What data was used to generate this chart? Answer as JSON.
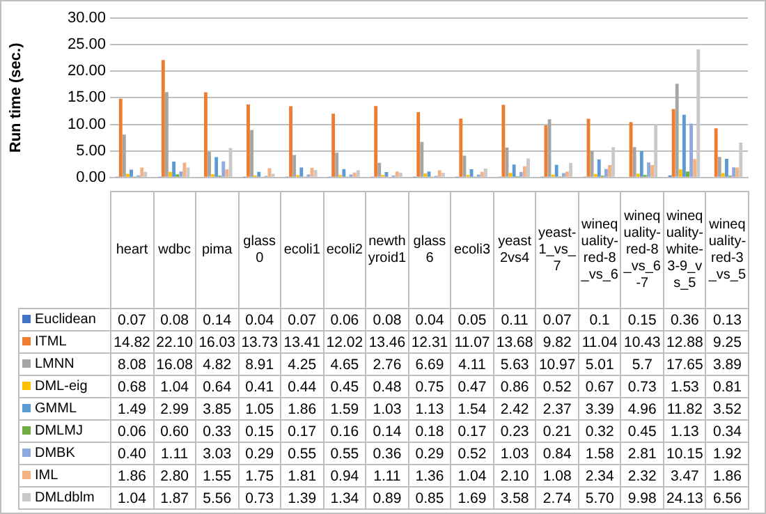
{
  "chart_data": {
    "type": "bar",
    "ylabel": "Run time (sec.)",
    "categories": [
      "heart",
      "wdbc",
      "pima",
      "glass0",
      "ecoli1",
      "ecoli2",
      "newthyroid1",
      "glass6",
      "ecoli3",
      "yeast2vs4",
      "yeast-1_vs_7",
      "winequality-red-8_vs_6",
      "winequality-red-8_vs_6-7",
      "winequality-white-3-9_vs_5",
      "winequality-red-3_vs_5"
    ],
    "series": [
      {
        "name": "Euclidean",
        "color": "#4472c4",
        "values": [
          0.07,
          0.08,
          0.14,
          0.04,
          0.07,
          0.06,
          0.08,
          0.04,
          0.05,
          0.11,
          0.07,
          0.1,
          0.15,
          0.36,
          0.13
        ],
        "value_labels": [
          "0.07",
          "0.08",
          "0.14",
          "0.04",
          "0.07",
          "0.06",
          "0.08",
          "0.04",
          "0.05",
          "0.11",
          "0.07",
          "0.1",
          "0.15",
          "0.36",
          "0.13"
        ]
      },
      {
        "name": "ITML",
        "color": "#ed7d31",
        "values": [
          14.82,
          22.1,
          16.03,
          13.73,
          13.41,
          12.02,
          13.46,
          12.31,
          11.07,
          13.68,
          9.82,
          11.04,
          10.43,
          12.88,
          9.25
        ],
        "value_labels": [
          "14.82",
          "22.10",
          "16.03",
          "13.73",
          "13.41",
          "12.02",
          "13.46",
          "12.31",
          "11.07",
          "13.68",
          "9.82",
          "11.04",
          "10.43",
          "12.88",
          "9.25"
        ]
      },
      {
        "name": "LMNN",
        "color": "#a5a5a5",
        "values": [
          8.08,
          16.08,
          4.82,
          8.91,
          4.25,
          4.65,
          2.76,
          6.69,
          4.11,
          5.63,
          10.97,
          5.01,
          5.7,
          17.65,
          3.89
        ],
        "value_labels": [
          "8.08",
          "16.08",
          "4.82",
          "8.91",
          "4.25",
          "4.65",
          "2.76",
          "6.69",
          "4.11",
          "5.63",
          "10.97",
          "5.01",
          "5.7",
          "17.65",
          "3.89"
        ]
      },
      {
        "name": "DML-eig",
        "color": "#ffc000",
        "values": [
          0.68,
          1.04,
          0.64,
          0.41,
          0.44,
          0.45,
          0.48,
          0.75,
          0.47,
          0.86,
          0.52,
          0.67,
          0.73,
          1.53,
          0.81
        ],
        "value_labels": [
          "0.68",
          "1.04",
          "0.64",
          "0.41",
          "0.44",
          "0.45",
          "0.48",
          "0.75",
          "0.47",
          "0.86",
          "0.52",
          "0.67",
          "0.73",
          "1.53",
          "0.81"
        ]
      },
      {
        "name": "GMML",
        "color": "#5b9bd5",
        "values": [
          1.49,
          2.99,
          3.85,
          1.05,
          1.86,
          1.59,
          1.03,
          1.13,
          1.54,
          2.42,
          2.37,
          3.39,
          4.96,
          11.82,
          3.52
        ],
        "value_labels": [
          "1.49",
          "2.99",
          "3.85",
          "1.05",
          "1.86",
          "1.59",
          "1.03",
          "1.13",
          "1.54",
          "2.42",
          "2.37",
          "3.39",
          "4.96",
          "11.82",
          "3.52"
        ]
      },
      {
        "name": "DMLMJ",
        "color": "#70ad47",
        "values": [
          0.06,
          0.6,
          0.33,
          0.15,
          0.17,
          0.16,
          0.14,
          0.18,
          0.17,
          0.23,
          0.21,
          0.32,
          0.45,
          1.13,
          0.34
        ],
        "value_labels": [
          "0.06",
          "0.60",
          "0.33",
          "0.15",
          "0.17",
          "0.16",
          "0.14",
          "0.18",
          "0.17",
          "0.23",
          "0.21",
          "0.32",
          "0.45",
          "1.13",
          "0.34"
        ]
      },
      {
        "name": "DMBK",
        "color": "#8faadc",
        "values": [
          0.4,
          1.11,
          3.03,
          0.29,
          0.55,
          0.55,
          0.36,
          0.29,
          0.52,
          1.03,
          0.84,
          1.58,
          2.81,
          10.15,
          1.92
        ],
        "value_labels": [
          "0.40",
          "1.11",
          "3.03",
          "0.29",
          "0.55",
          "0.55",
          "0.36",
          "0.29",
          "0.52",
          "1.03",
          "0.84",
          "1.58",
          "2.81",
          "10.15",
          "1.92"
        ]
      },
      {
        "name": "IML",
        "color": "#f4b183",
        "values": [
          1.86,
          2.8,
          1.55,
          1.75,
          1.81,
          0.94,
          1.11,
          1.36,
          1.04,
          2.1,
          1.08,
          2.34,
          2.32,
          3.47,
          1.86
        ],
        "value_labels": [
          "1.86",
          "2.80",
          "1.55",
          "1.75",
          "1.81",
          "0.94",
          "1.11",
          "1.36",
          "1.04",
          "2.10",
          "1.08",
          "2.34",
          "2.32",
          "3.47",
          "1.86"
        ]
      },
      {
        "name": "DMLdblm",
        "color": "#c9c9c9",
        "values": [
          1.04,
          1.87,
          5.56,
          0.73,
          1.39,
          1.34,
          0.89,
          0.85,
          1.69,
          3.58,
          2.74,
          5.7,
          9.98,
          24.13,
          6.56
        ],
        "value_labels": [
          "1.04",
          "1.87",
          "5.56",
          "0.73",
          "1.39",
          "1.34",
          "0.89",
          "0.85",
          "1.69",
          "3.58",
          "2.74",
          "5.70",
          "9.98",
          "24.13",
          "6.56"
        ]
      }
    ],
    "ylim": [
      0,
      30
    ],
    "yticks": [
      {
        "value": 0,
        "label": "0.00"
      },
      {
        "value": 5,
        "label": "5.00"
      },
      {
        "value": 10,
        "label": "10.00"
      },
      {
        "value": 15,
        "label": "15.00"
      },
      {
        "value": 20,
        "label": "20.00"
      },
      {
        "value": 25,
        "label": "25.00"
      },
      {
        "value": 30,
        "label": "30.00"
      }
    ],
    "grid": "y",
    "legend": "bottom"
  }
}
